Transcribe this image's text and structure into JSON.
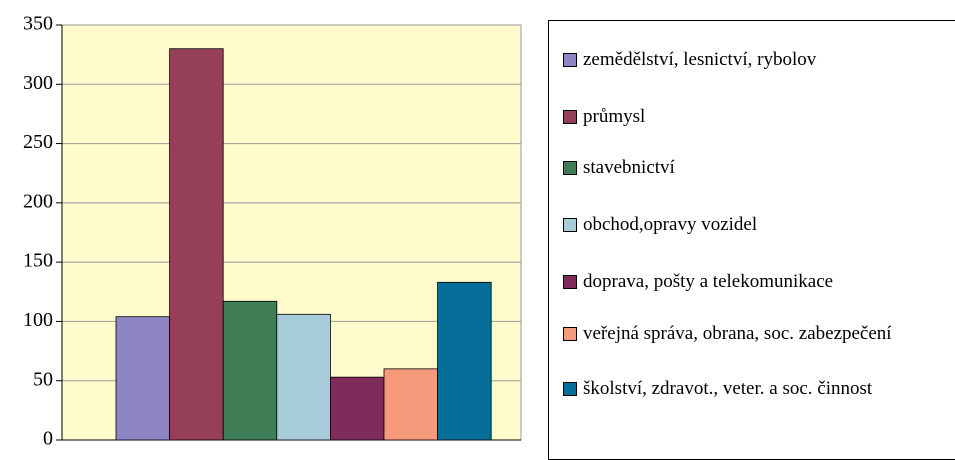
{
  "chart_data": {
    "type": "bar",
    "categories": [
      null
    ],
    "series": [
      {
        "name": "zemědělství, lesnictví, rybolov",
        "color": "#8e86c4",
        "values": [
          104
        ]
      },
      {
        "name": "průmysl",
        "color": "#953f58",
        "values": [
          330
        ]
      },
      {
        "name": "stavebnictví",
        "color": "#3e7d56",
        "values": [
          117
        ]
      },
      {
        "name": "obchod,opravy vozidel",
        "color": "#a9ccdb",
        "values": [
          106
        ]
      },
      {
        "name": "doprava, pošty a telekomunikace",
        "color": "#7f2b5c",
        "values": [
          53
        ]
      },
      {
        "name": "veřejná správa, obrana, soc. zabezpečení",
        "color": "#f59b7b",
        "values": [
          60
        ]
      },
      {
        "name": "školství, zdravot., veter. a soc. činnost",
        "color": "#066f99",
        "values": [
          133
        ]
      }
    ],
    "ylim": [
      0,
      350
    ],
    "yticks": [
      0,
      50,
      100,
      150,
      200,
      250,
      300,
      350
    ],
    "grid": true
  }
}
